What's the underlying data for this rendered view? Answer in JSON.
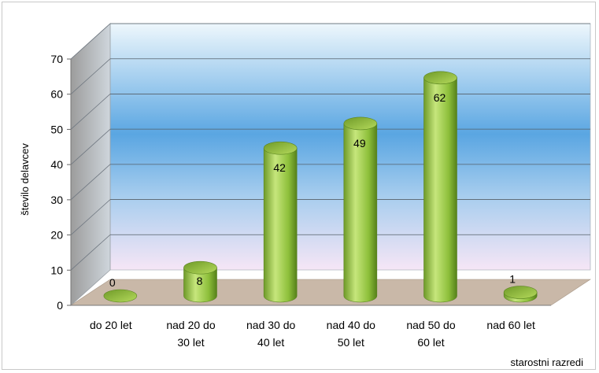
{
  "chart_data": {
    "type": "bar",
    "style": "3d-cylinder",
    "categories": [
      "do 20 let",
      "nad 20 do 30 let",
      "nad 30 do 40 let",
      "nad 40 do 50 let",
      "nad 50 do 60 let",
      "nad 60 let"
    ],
    "category_lines": [
      [
        "do 20 let"
      ],
      [
        "nad 20 do",
        "30 let"
      ],
      [
        "nad 30 do",
        "40 let"
      ],
      [
        "nad 40 do",
        "50 let"
      ],
      [
        "nad 50 do",
        "60 let"
      ],
      [
        "nad 60 let"
      ]
    ],
    "values": [
      0,
      8,
      42,
      49,
      62,
      1
    ],
    "ylabel": "število delavcev",
    "xlabel": "starostni razredi",
    "ylim": [
      0,
      70
    ],
    "yticks": [
      0,
      10,
      20,
      30,
      40,
      50,
      60,
      70
    ],
    "grid": true,
    "legend": "none",
    "colors": {
      "bar_light": "#c8e67a",
      "bar_mid": "#8dbf3a",
      "bar_dark": "#5e8a1e",
      "top_light": "#a8d050",
      "wall_top": "#e8f4fb",
      "wall_mid": "#62a8e0",
      "wall_bottom": "#f4e4f4",
      "floor": "#c9b8a8"
    }
  }
}
